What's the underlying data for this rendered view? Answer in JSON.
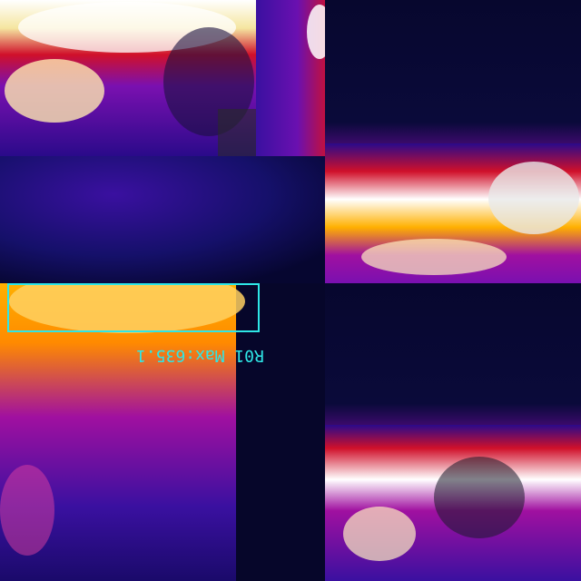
{
  "overlay": {
    "roi_label": "R01 Max:635.1",
    "roi_color": "#2ee6e6"
  },
  "palette": {
    "cold": "#05052a",
    "cool": "#2a0a8a",
    "mid": "#7a10b0",
    "warm": "#d0102a",
    "hot": "#ffb000",
    "hottest": "#ffffff"
  }
}
